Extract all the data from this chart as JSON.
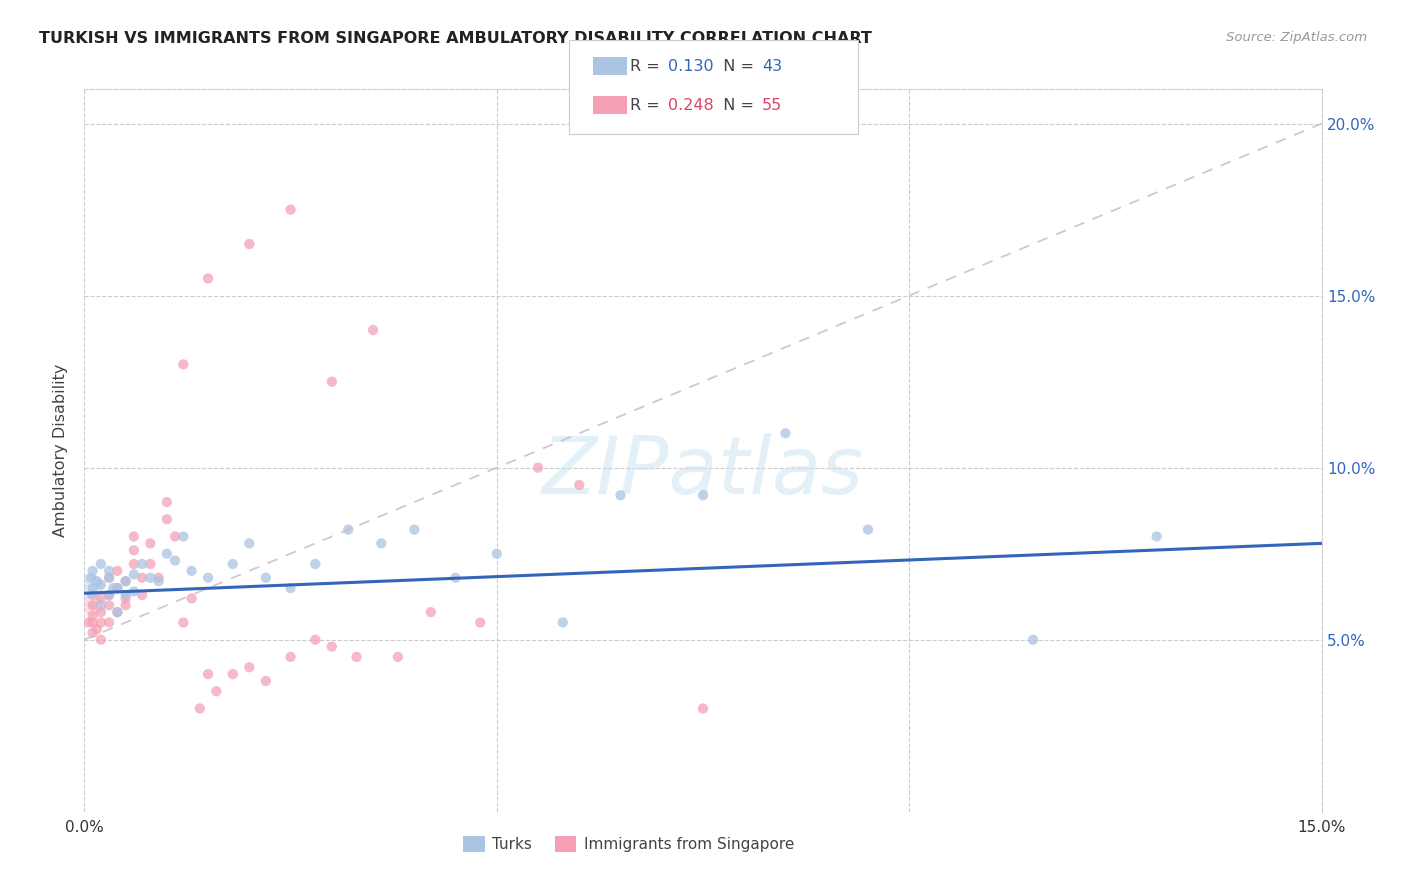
{
  "title": "TURKISH VS IMMIGRANTS FROM SINGAPORE AMBULATORY DISABILITY CORRELATION CHART",
  "source": "Source: ZipAtlas.com",
  "ylabel": "Ambulatory Disability",
  "xlim": [
    0.0,
    0.15
  ],
  "ylim": [
    0.0,
    0.21
  ],
  "background_color": "#ffffff",
  "turks_color": "#aac4e2",
  "turks_line_color": "#3366bb",
  "singapore_color": "#f5a0b5",
  "singapore_line_color": "#dd4466",
  "R_turks": 0.13,
  "N_turks": 43,
  "R_singapore": 0.248,
  "N_singapore": 55,
  "turks_x": [
    0.0008,
    0.001,
    0.001,
    0.001,
    0.0015,
    0.002,
    0.002,
    0.002,
    0.003,
    0.003,
    0.003,
    0.0035,
    0.004,
    0.004,
    0.005,
    0.005,
    0.006,
    0.006,
    0.007,
    0.008,
    0.009,
    0.01,
    0.011,
    0.012,
    0.013,
    0.015,
    0.018,
    0.02,
    0.022,
    0.025,
    0.028,
    0.032,
    0.036,
    0.04,
    0.045,
    0.05,
    0.058,
    0.065,
    0.075,
    0.085,
    0.095,
    0.115,
    0.13
  ],
  "turks_y": [
    0.068,
    0.065,
    0.07,
    0.063,
    0.067,
    0.066,
    0.06,
    0.072,
    0.068,
    0.063,
    0.07,
    0.065,
    0.065,
    0.058,
    0.067,
    0.063,
    0.069,
    0.064,
    0.072,
    0.068,
    0.067,
    0.075,
    0.073,
    0.08,
    0.07,
    0.068,
    0.072,
    0.078,
    0.068,
    0.065,
    0.072,
    0.082,
    0.078,
    0.082,
    0.068,
    0.075,
    0.055,
    0.092,
    0.092,
    0.11,
    0.082,
    0.05,
    0.08
  ],
  "singapore_x": [
    0.0005,
    0.001,
    0.001,
    0.001,
    0.001,
    0.0015,
    0.002,
    0.002,
    0.002,
    0.002,
    0.003,
    0.003,
    0.003,
    0.003,
    0.004,
    0.004,
    0.004,
    0.005,
    0.005,
    0.005,
    0.006,
    0.006,
    0.006,
    0.007,
    0.007,
    0.008,
    0.008,
    0.009,
    0.01,
    0.01,
    0.011,
    0.012,
    0.013,
    0.014,
    0.015,
    0.016,
    0.018,
    0.02,
    0.022,
    0.025,
    0.028,
    0.03,
    0.033,
    0.038,
    0.042,
    0.048,
    0.055,
    0.06,
    0.012,
    0.015,
    0.02,
    0.025,
    0.03,
    0.035,
    0.075
  ],
  "singapore_y": [
    0.055,
    0.057,
    0.055,
    0.06,
    0.052,
    0.053,
    0.05,
    0.055,
    0.058,
    0.062,
    0.063,
    0.06,
    0.055,
    0.068,
    0.065,
    0.07,
    0.058,
    0.06,
    0.062,
    0.067,
    0.072,
    0.076,
    0.08,
    0.063,
    0.068,
    0.072,
    0.078,
    0.068,
    0.085,
    0.09,
    0.08,
    0.055,
    0.062,
    0.03,
    0.04,
    0.035,
    0.04,
    0.042,
    0.038,
    0.045,
    0.05,
    0.048,
    0.045,
    0.045,
    0.058,
    0.055,
    0.1,
    0.095,
    0.13,
    0.155,
    0.165,
    0.175,
    0.125,
    0.14,
    0.03
  ],
  "turks_line_x": [
    0.0,
    0.15
  ],
  "turks_line_y": [
    0.0635,
    0.078
  ],
  "singapore_line_x": [
    0.0,
    0.15
  ],
  "singapore_line_y": [
    0.05,
    0.2
  ],
  "ytick_positions": [
    0.05,
    0.1,
    0.15,
    0.2
  ],
  "ytick_labels": [
    "5.0%",
    "10.0%",
    "15.0%",
    "20.0%"
  ],
  "xtick_positions": [
    0.0,
    0.05,
    0.1,
    0.15
  ],
  "xtick_labels": [
    "0.0%",
    "",
    "",
    "15.0%"
  ],
  "point_size": 55,
  "point_alpha": 0.75
}
